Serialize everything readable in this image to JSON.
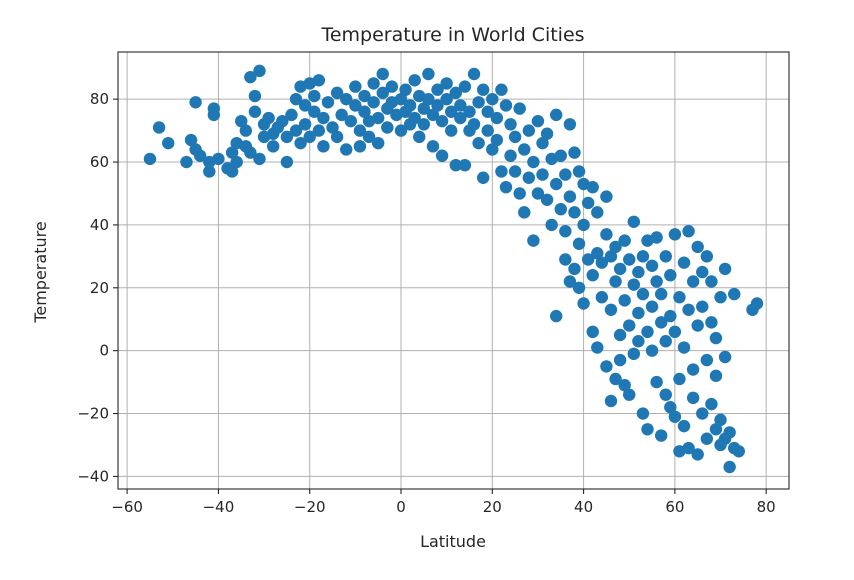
{
  "chart_data": {
    "type": "scatter",
    "title": "Temperature in World Cities",
    "xlabel": "Latitude",
    "ylabel": "Temperature",
    "xlim": [
      -62,
      85
    ],
    "ylim": [
      -44,
      95
    ],
    "xticks": [
      -60,
      -40,
      -20,
      0,
      20,
      40,
      60,
      80
    ],
    "yticks": [
      -40,
      -20,
      0,
      20,
      40,
      60,
      80
    ],
    "xtick_labels": [
      "−60",
      "−40",
      "−20",
      "0",
      "20",
      "40",
      "60",
      "80"
    ],
    "ytick_labels": [
      "−40",
      "−20",
      "0",
      "20",
      "40",
      "60",
      "80"
    ],
    "grid": true,
    "marker_color": "#1f77b4",
    "points": [
      [
        -55,
        61
      ],
      [
        -53,
        71
      ],
      [
        -51,
        66
      ],
      [
        -47,
        60
      ],
      [
        -46,
        67
      ],
      [
        -45,
        79
      ],
      [
        -45,
        64
      ],
      [
        -44,
        62
      ],
      [
        -42,
        57
      ],
      [
        -42,
        60
      ],
      [
        -41,
        77
      ],
      [
        -41,
        75
      ],
      [
        -40,
        61
      ],
      [
        -38,
        58
      ],
      [
        -37,
        57
      ],
      [
        -37,
        63
      ],
      [
        -36,
        60
      ],
      [
        -36,
        66
      ],
      [
        -35,
        73
      ],
      [
        -34,
        70
      ],
      [
        -34,
        65
      ],
      [
        -33,
        87
      ],
      [
        -33,
        63
      ],
      [
        -32,
        76
      ],
      [
        -32,
        81
      ],
      [
        -31,
        89
      ],
      [
        -31,
        61
      ],
      [
        -30,
        72
      ],
      [
        -30,
        68
      ],
      [
        -29,
        74
      ],
      [
        -28,
        69
      ],
      [
        -28,
        65
      ],
      [
        -27,
        71
      ],
      [
        -26,
        73
      ],
      [
        -25,
        68
      ],
      [
        -25,
        60
      ],
      [
        -24,
        75
      ],
      [
        -23,
        70
      ],
      [
        -23,
        80
      ],
      [
        -22,
        66
      ],
      [
        -22,
        84
      ],
      [
        -21,
        78
      ],
      [
        -21,
        72
      ],
      [
        -20,
        85
      ],
      [
        -20,
        68
      ],
      [
        -19,
        76
      ],
      [
        -19,
        81
      ],
      [
        -18,
        70
      ],
      [
        -18,
        86
      ],
      [
        -17,
        74
      ],
      [
        -17,
        65
      ],
      [
        -16,
        79
      ],
      [
        -15,
        71
      ],
      [
        -14,
        82
      ],
      [
        -14,
        68
      ],
      [
        -13,
        75
      ],
      [
        -12,
        80
      ],
      [
        -12,
        64
      ],
      [
        -11,
        73
      ],
      [
        -10,
        78
      ],
      [
        -10,
        84
      ],
      [
        -9,
        70
      ],
      [
        -9,
        65
      ],
      [
        -8,
        81
      ],
      [
        -8,
        76
      ],
      [
        -7,
        73
      ],
      [
        -7,
        68
      ],
      [
        -6,
        85
      ],
      [
        -6,
        79
      ],
      [
        -5,
        74
      ],
      [
        -5,
        66
      ],
      [
        -4,
        88
      ],
      [
        -4,
        82
      ],
      [
        -3,
        77
      ],
      [
        -3,
        71
      ],
      [
        -2,
        84
      ],
      [
        -2,
        79
      ],
      [
        -1,
        75
      ],
      [
        0,
        80
      ],
      [
        0,
        70
      ],
      [
        1,
        83
      ],
      [
        1,
        76
      ],
      [
        2,
        72
      ],
      [
        2,
        78
      ],
      [
        3,
        86
      ],
      [
        3,
        74
      ],
      [
        4,
        81
      ],
      [
        4,
        68
      ],
      [
        5,
        77
      ],
      [
        5,
        72
      ],
      [
        6,
        88
      ],
      [
        6,
        80
      ],
      [
        7,
        75
      ],
      [
        7,
        65
      ],
      [
        8,
        83
      ],
      [
        8,
        78
      ],
      [
        9,
        73
      ],
      [
        9,
        62
      ],
      [
        10,
        85
      ],
      [
        10,
        80
      ],
      [
        11,
        76
      ],
      [
        11,
        70
      ],
      [
        12,
        59
      ],
      [
        12,
        82
      ],
      [
        13,
        74
      ],
      [
        13,
        78
      ],
      [
        14,
        59
      ],
      [
        14,
        84
      ],
      [
        15,
        76
      ],
      [
        15,
        70
      ],
      [
        16,
        88
      ],
      [
        16,
        72
      ],
      [
        17,
        79
      ],
      [
        17,
        66
      ],
      [
        18,
        55
      ],
      [
        18,
        83
      ],
      [
        19,
        76
      ],
      [
        19,
        70
      ],
      [
        20,
        80
      ],
      [
        20,
        64
      ],
      [
        21,
        74
      ],
      [
        21,
        67
      ],
      [
        22,
        83
      ],
      [
        22,
        57
      ],
      [
        23,
        78
      ],
      [
        23,
        52
      ],
      [
        24,
        72
      ],
      [
        24,
        62
      ],
      [
        25,
        68
      ],
      [
        25,
        57
      ],
      [
        26,
        77
      ],
      [
        26,
        50
      ],
      [
        27,
        64
      ],
      [
        27,
        44
      ],
      [
        28,
        70
      ],
      [
        28,
        55
      ],
      [
        29,
        60
      ],
      [
        29,
        35
      ],
      [
        30,
        73
      ],
      [
        30,
        50
      ],
      [
        31,
        66
      ],
      [
        31,
        56
      ],
      [
        32,
        69
      ],
      [
        32,
        48
      ],
      [
        33,
        61
      ],
      [
        33,
        40
      ],
      [
        34,
        53
      ],
      [
        34,
        75
      ],
      [
        34,
        11
      ],
      [
        35,
        45
      ],
      [
        35,
        62
      ],
      [
        36,
        38
      ],
      [
        36,
        56
      ],
      [
        36,
        29
      ],
      [
        37,
        72
      ],
      [
        37,
        49
      ],
      [
        37,
        22
      ],
      [
        38,
        63
      ],
      [
        38,
        44
      ],
      [
        38,
        26
      ],
      [
        39,
        57
      ],
      [
        39,
        20
      ],
      [
        39,
        34
      ],
      [
        40,
        53
      ],
      [
        40,
        40
      ],
      [
        40,
        15
      ],
      [
        41,
        29
      ],
      [
        41,
        47
      ],
      [
        42,
        6
      ],
      [
        42,
        24
      ],
      [
        42,
        52
      ],
      [
        43,
        31
      ],
      [
        43,
        1
      ],
      [
        43,
        44
      ],
      [
        44,
        17
      ],
      [
        44,
        28
      ],
      [
        45,
        -5
      ],
      [
        45,
        37
      ],
      [
        45,
        49
      ],
      [
        46,
        13
      ],
      [
        46,
        30
      ],
      [
        46,
        -16
      ],
      [
        47,
        22
      ],
      [
        47,
        -9
      ],
      [
        47,
        33
      ],
      [
        48,
        5
      ],
      [
        48,
        26
      ],
      [
        48,
        -3
      ],
      [
        49,
        16
      ],
      [
        49,
        35
      ],
      [
        49,
        -11
      ],
      [
        50,
        8
      ],
      [
        50,
        29
      ],
      [
        50,
        -14
      ],
      [
        51,
        21
      ],
      [
        51,
        -1
      ],
      [
        51,
        41
      ],
      [
        52,
        12
      ],
      [
        52,
        25
      ],
      [
        52,
        3
      ],
      [
        53,
        30
      ],
      [
        53,
        -20
      ],
      [
        53,
        18
      ],
      [
        54,
        6
      ],
      [
        54,
        35
      ],
      [
        54,
        -25
      ],
      [
        55,
        14
      ],
      [
        55,
        27
      ],
      [
        55,
        0
      ],
      [
        56,
        22
      ],
      [
        56,
        -10
      ],
      [
        56,
        36
      ],
      [
        57,
        9
      ],
      [
        57,
        -27
      ],
      [
        57,
        18
      ],
      [
        58,
        3
      ],
      [
        58,
        30
      ],
      [
        58,
        -14
      ],
      [
        59,
        24
      ],
      [
        59,
        -18
      ],
      [
        59,
        11
      ],
      [
        60,
        6
      ],
      [
        60,
        -21
      ],
      [
        60,
        37
      ],
      [
        61,
        17
      ],
      [
        61,
        -32
      ],
      [
        61,
        -9
      ],
      [
        62,
        28
      ],
      [
        62,
        1
      ],
      [
        62,
        -24
      ],
      [
        63,
        13
      ],
      [
        63,
        38
      ],
      [
        63,
        -31
      ],
      [
        64,
        22
      ],
      [
        64,
        -6
      ],
      [
        64,
        -15
      ],
      [
        65,
        33
      ],
      [
        65,
        8
      ],
      [
        65,
        -33
      ],
      [
        66,
        25
      ],
      [
        66,
        -20
      ],
      [
        66,
        14
      ],
      [
        67,
        -3
      ],
      [
        67,
        30
      ],
      [
        67,
        -28
      ],
      [
        68,
        9
      ],
      [
        68,
        -17
      ],
      [
        68,
        22
      ],
      [
        69,
        -8
      ],
      [
        69,
        -25
      ],
      [
        69,
        4
      ],
      [
        70,
        -22
      ],
      [
        70,
        -30
      ],
      [
        70,
        17
      ],
      [
        71,
        -2
      ],
      [
        71,
        26
      ],
      [
        71,
        -28
      ],
      [
        72,
        -37
      ],
      [
        72,
        -26
      ],
      [
        73,
        18
      ],
      [
        73,
        -31
      ],
      [
        74,
        -32
      ],
      [
        77,
        13
      ],
      [
        78,
        15
      ]
    ]
  }
}
